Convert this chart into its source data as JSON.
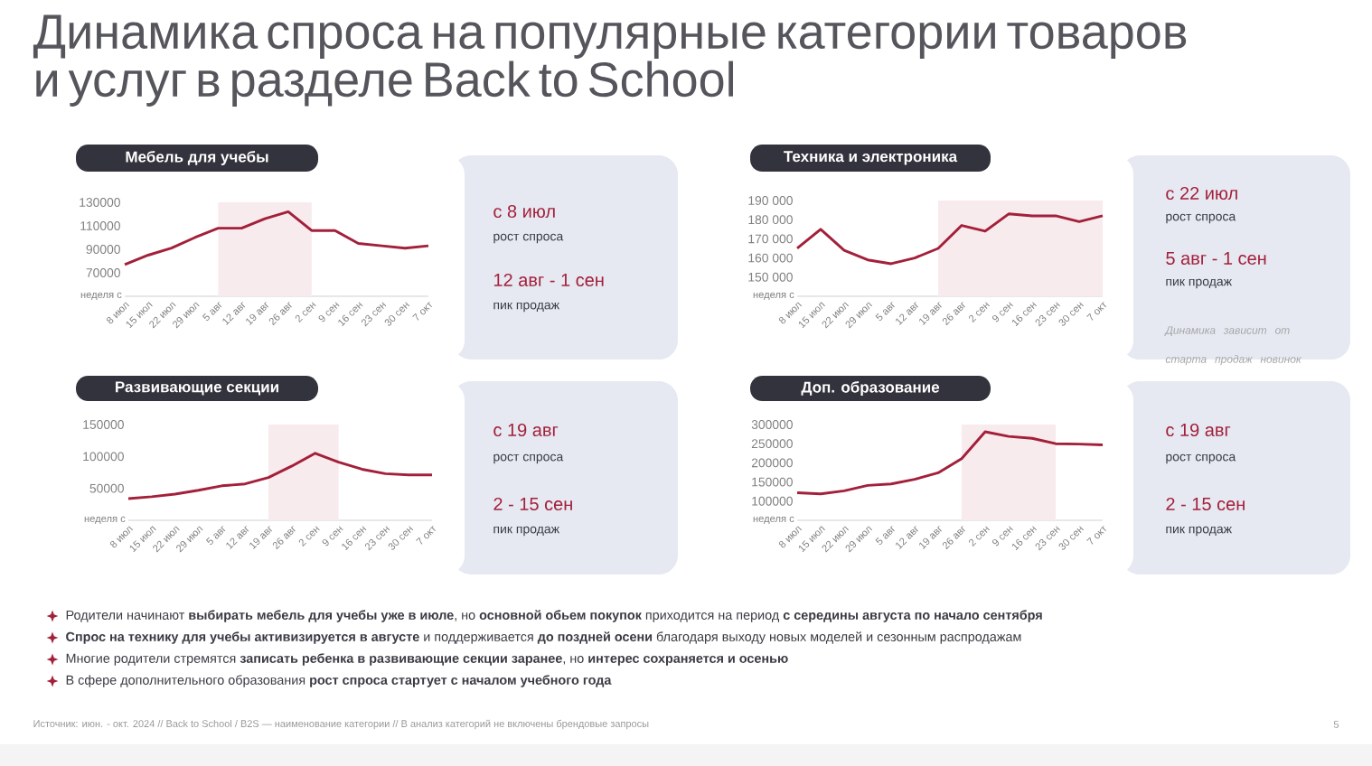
{
  "chart_data": [
    {
      "type": "line",
      "title": "Мебель для учебы",
      "xlabel": "неделя с",
      "color": "#a3203a",
      "categories": [
        "8 июл",
        "15 июл",
        "22 июл",
        "29 июл",
        "5 авг",
        "12 авг",
        "19 авг",
        "26 авг",
        "2 сен",
        "9 сен",
        "16 сен",
        "23 сен",
        "30 сен",
        "7 окт"
      ],
      "values": [
        77000,
        85000,
        91000,
        100000,
        108000,
        108000,
        116000,
        122000,
        106000,
        106000,
        95000,
        93000,
        91000,
        93000
      ],
      "ylim": [
        50000,
        130000
      ],
      "yticks": [
        70000,
        90000,
        110000,
        130000
      ],
      "bands": [
        {
          "axis": "x",
          "from": "5 авг",
          "to": "2 сен",
          "color": "#f8ebee"
        }
      ],
      "annotations": [
        "с 8 июл",
        "рост спроса",
        "12 авг - 1 сен",
        "пик продаж"
      ]
    },
    {
      "type": "line",
      "title": "Техника и электроника",
      "xlabel": "неделя с",
      "color": "#a3203a",
      "categories": [
        "8 июл",
        "15 июл",
        "22 июл",
        "29 июл",
        "5 авг",
        "12 авг",
        "19 авг",
        "26 авг",
        "2 сен",
        "9 сен",
        "16 сен",
        "23 сен",
        "30 сен",
        "7 окт"
      ],
      "values": [
        165000,
        175000,
        164000,
        159000,
        157000,
        160000,
        165000,
        177000,
        174000,
        183000,
        182000,
        182000,
        179000,
        182000
      ],
      "ylim": [
        140000,
        190000
      ],
      "yticks": [
        {
          "value": 150000,
          "label": "150 000"
        },
        {
          "value": 160000,
          "label": "160 000"
        },
        {
          "value": 170000,
          "label": "170 000"
        },
        {
          "value": 180000,
          "label": "180 000"
        },
        {
          "value": 190000,
          "label": "190 000"
        }
      ],
      "bands": [
        {
          "axis": "x",
          "from": "19 авг",
          "to": "7 окт",
          "color": "#f8ebee"
        }
      ],
      "annotations": [
        "с 22 июл",
        "рост спроса",
        "5 авг - 1 сен",
        "пик продаж",
        "Динамика зависит от старта продаж новинок"
      ]
    },
    {
      "type": "line",
      "title": "Развивающие секции",
      "xlabel": "неделя с",
      "color": "#a3203a",
      "categories": [
        "8 июл",
        "15 июл",
        "22 июл",
        "29 июл",
        "5 авг",
        "12 авг",
        "19 авг",
        "26 авг",
        "2 сен",
        "9 сен",
        "16 сен",
        "23 сен",
        "30 сен",
        "7 окт"
      ],
      "values": [
        34000,
        37000,
        41000,
        47000,
        54000,
        57000,
        67000,
        85000,
        105000,
        91000,
        80000,
        73000,
        71000,
        71000
      ],
      "ylim": [
        0,
        150000
      ],
      "yticks": [
        50000,
        100000,
        150000
      ],
      "bands": [
        {
          "axis": "x",
          "from": "19 авг",
          "to": "9 сен",
          "color": "#f8ebee"
        }
      ],
      "annotations": [
        "с 19 авг",
        "рост спроса",
        "2 - 15 сен",
        "пик продаж"
      ]
    },
    {
      "type": "line",
      "title": "Доп. образование",
      "xlabel": "неделя с",
      "color": "#a3203a",
      "categories": [
        "8 июл",
        "15 июл",
        "22 июл",
        "29 июл",
        "5 авг",
        "12 авг",
        "19 авг",
        "26 авг",
        "2 сен",
        "9 сен",
        "16 сен",
        "23 сен",
        "30 сен",
        "7 окт"
      ],
      "values": [
        122000,
        119000,
        127000,
        141000,
        145000,
        157000,
        174000,
        211000,
        281000,
        269000,
        264000,
        250000,
        249000,
        247000
      ],
      "ylim": [
        50000,
        300000
      ],
      "yticks": [
        100000,
        150000,
        200000,
        250000,
        300000
      ],
      "bands": [
        {
          "axis": "x",
          "from": "26 авг",
          "to": "23 сен",
          "color": "#f8ebee"
        }
      ],
      "annotations": [
        "с 19 авг",
        "рост спроса",
        "2 - 15 сен",
        "пик продаж"
      ]
    },
    {
      "type": "other",
      "title": "Динамика спроса на популярные категории товаров и услуг в разделе Back to School",
      "annotations": [
        "Родители начинают **выбирать мебель для учебы уже в июле**, но **основной обьем покупок** приходится на период **с середины августа по начало сентября**",
        "**Спрос на технику для учебы активизируется в августе** и поддерживается **до поздней осени** благодаря выходу новых моделей и сезонным распродажам",
        "Многие родители стремятся **записать ребенка в развивающие секции заранее**, но **интерес сохраняется и осенью**",
        "В сфере дополнительного образования **рост спроса стартует с началом учебного года**",
        "Источник: июн. - окт. 2024  //  Back to School / B2S — наименование категории  //  В анализ категорий не включены брендовые запросы",
        "5"
      ]
    }
  ]
}
